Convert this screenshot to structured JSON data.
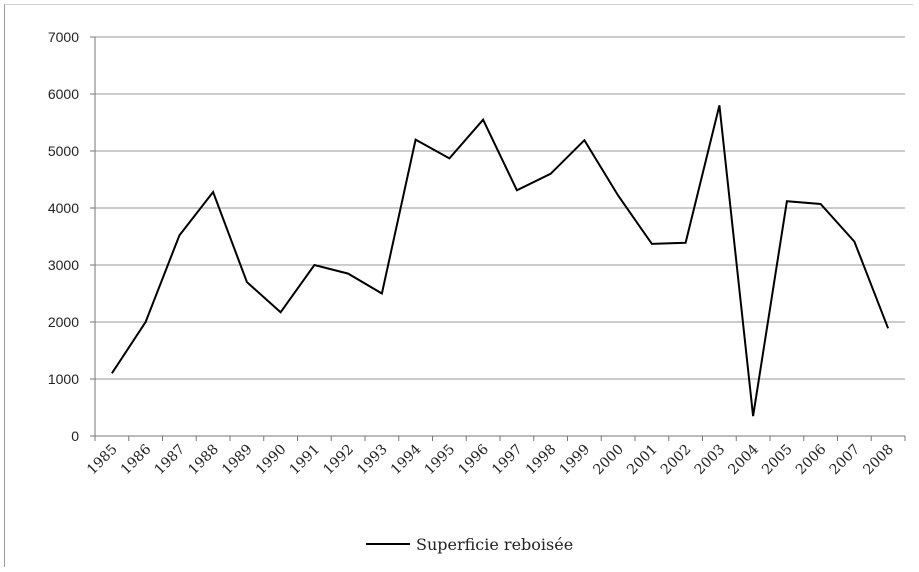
{
  "chart_data": {
    "type": "line",
    "x": [
      "1985",
      "1986",
      "1987",
      "1988",
      "1989",
      "1990",
      "1991",
      "1992",
      "1993",
      "1994",
      "1995",
      "1996",
      "1997",
      "1998",
      "1999",
      "2000",
      "2001",
      "2002",
      "2003",
      "2004",
      "2005",
      "2006",
      "2007",
      "2008"
    ],
    "series": [
      {
        "name": "Superficie reboisée",
        "values": [
          1100,
          2000,
          3520,
          4280,
          2700,
          2170,
          3000,
          2850,
          2500,
          5200,
          4870,
          5550,
          4310,
          4600,
          5190,
          4220,
          3370,
          3390,
          5800,
          350,
          4120,
          4070,
          3410,
          1890
        ],
        "color": "#000000"
      }
    ],
    "yticks": [
      "0",
      "1000",
      "2000",
      "3000",
      "4000",
      "5000",
      "6000",
      "7000"
    ],
    "ylim": [
      0,
      7000
    ],
    "grid": true,
    "legend_position": "bottom"
  }
}
